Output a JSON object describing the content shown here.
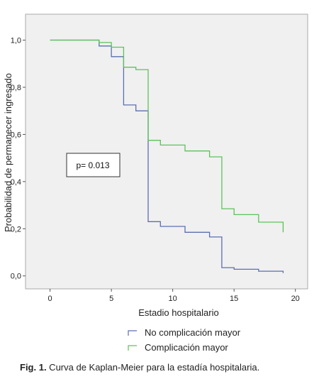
{
  "chart_data": {
    "type": "line",
    "step": true,
    "ylabel": "Probabilidad de permanecer ingresado",
    "xlabel": "Estadio hospitalario",
    "xlim": [
      -2,
      21
    ],
    "ylim": [
      -0.055,
      1.11
    ],
    "x_ticks": [
      0,
      5,
      10,
      15,
      20
    ],
    "x_tick_labels": [
      "0",
      "5",
      "10",
      "15",
      "20"
    ],
    "y_ticks": [
      0.0,
      0.2,
      0.4,
      0.6,
      0.8,
      1.0
    ],
    "y_tick_labels": [
      "0,0",
      "0,2",
      "0,4",
      "0,6",
      "0,8",
      "1,0"
    ],
    "grid": false,
    "background": "#f0f0f0",
    "annotation": "p= 0.013",
    "legend_position": "bottom",
    "series": [
      {
        "name": "No complicación mayor",
        "color": "#5a6fb0",
        "x": [
          0,
          4,
          5,
          6,
          7,
          8,
          9,
          11,
          13,
          14,
          15,
          17,
          19
        ],
        "y": [
          1.0,
          0.975,
          0.93,
          0.725,
          0.7,
          0.23,
          0.21,
          0.185,
          0.165,
          0.035,
          0.028,
          0.02,
          0.012
        ]
      },
      {
        "name": "Complicación mayor",
        "color": "#5cc25c",
        "x": [
          0,
          4,
          5,
          6,
          7,
          8,
          9,
          11,
          13,
          14,
          15,
          17,
          19
        ],
        "y": [
          1.0,
          0.99,
          0.97,
          0.885,
          0.875,
          0.575,
          0.555,
          0.53,
          0.505,
          0.285,
          0.26,
          0.228,
          0.185
        ]
      }
    ]
  },
  "caption": {
    "label": "Fig. 1.",
    "text": " Curva de Kaplan-Meier para la estadía hospitalaria."
  }
}
